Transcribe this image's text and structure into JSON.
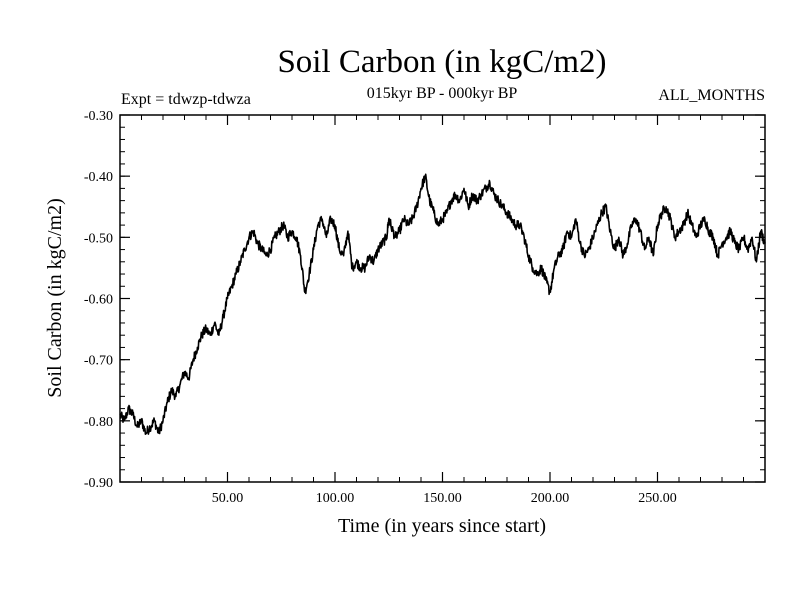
{
  "chart_data": {
    "type": "line",
    "title": "Soil Carbon (in kgC/m2)",
    "subtitle": "015kyr BP - 000kyr BP",
    "experiment_label": "Expt = tdwzp-tdwza",
    "months_label": "ALL_MONTHS",
    "xlabel": "Time (in years since start)",
    "ylabel": "Soil Carbon (in kgC/m2)",
    "xlim": [
      0,
      300
    ],
    "ylim": [
      -0.9,
      -0.3
    ],
    "x_ticks": [
      50,
      100,
      150,
      200,
      250
    ],
    "x_tick_labels": [
      "50.00",
      "100.00",
      "150.00",
      "200.00",
      "250.00"
    ],
    "y_ticks": [
      -0.9,
      -0.8,
      -0.7,
      -0.6,
      -0.5,
      -0.4,
      -0.3
    ],
    "y_tick_labels": [
      "-0.90",
      "-0.80",
      "-0.70",
      "-0.60",
      "-0.50",
      "-0.40",
      "-0.30"
    ],
    "series": [
      {
        "name": "Soil Carbon",
        "color": "#000000",
        "x": [
          0,
          2,
          4,
          6,
          8,
          10,
          12,
          14,
          16,
          18,
          20,
          22,
          24,
          26,
          28,
          30,
          32,
          34,
          36,
          38,
          40,
          42,
          44,
          46,
          48,
          50,
          52,
          54,
          56,
          58,
          60,
          62,
          64,
          66,
          68,
          70,
          72,
          74,
          76,
          78,
          80,
          82,
          84,
          86,
          88,
          90,
          92,
          94,
          96,
          98,
          100,
          102,
          104,
          106,
          108,
          110,
          112,
          114,
          116,
          118,
          120,
          122,
          124,
          125,
          126,
          128,
          130,
          132,
          134,
          136,
          138,
          140,
          142,
          144,
          146,
          148,
          150,
          152,
          154,
          156,
          158,
          160,
          162,
          164,
          166,
          168,
          170,
          172,
          174,
          176,
          178,
          180,
          182,
          184,
          186,
          188,
          190,
          192,
          194,
          196,
          198,
          200,
          202,
          204,
          206,
          208,
          210,
          212,
          214,
          216,
          218,
          220,
          222,
          224,
          226,
          228,
          230,
          232,
          234,
          236,
          238,
          240,
          242,
          244,
          246,
          248,
          250,
          252,
          254,
          256,
          258,
          260,
          262,
          264,
          266,
          268,
          270,
          272,
          274,
          276,
          278,
          280,
          282,
          284,
          286,
          288,
          290,
          292,
          294,
          296,
          298,
          300
        ],
        "y": [
          -0.79,
          -0.8,
          -0.78,
          -0.79,
          -0.81,
          -0.8,
          -0.82,
          -0.81,
          -0.8,
          -0.82,
          -0.8,
          -0.77,
          -0.75,
          -0.76,
          -0.74,
          -0.72,
          -0.73,
          -0.7,
          -0.68,
          -0.66,
          -0.65,
          -0.66,
          -0.64,
          -0.66,
          -0.63,
          -0.6,
          -0.58,
          -0.56,
          -0.54,
          -0.52,
          -0.5,
          -0.49,
          -0.51,
          -0.52,
          -0.53,
          -0.52,
          -0.5,
          -0.49,
          -0.48,
          -0.5,
          -0.49,
          -0.5,
          -0.53,
          -0.59,
          -0.56,
          -0.52,
          -0.48,
          -0.47,
          -0.5,
          -0.47,
          -0.48,
          -0.52,
          -0.53,
          -0.49,
          -0.55,
          -0.54,
          -0.55,
          -0.55,
          -0.53,
          -0.54,
          -0.52,
          -0.51,
          -0.5,
          -0.47,
          -0.48,
          -0.5,
          -0.49,
          -0.47,
          -0.48,
          -0.47,
          -0.45,
          -0.42,
          -0.4,
          -0.44,
          -0.46,
          -0.48,
          -0.47,
          -0.46,
          -0.44,
          -0.43,
          -0.44,
          -0.42,
          -0.45,
          -0.43,
          -0.44,
          -0.43,
          -0.42,
          -0.41,
          -0.43,
          -0.44,
          -0.45,
          -0.46,
          -0.47,
          -0.48,
          -0.48,
          -0.5,
          -0.53,
          -0.55,
          -0.56,
          -0.55,
          -0.57,
          -0.59,
          -0.55,
          -0.53,
          -0.52,
          -0.49,
          -0.5,
          -0.47,
          -0.51,
          -0.53,
          -0.52,
          -0.5,
          -0.48,
          -0.46,
          -0.45,
          -0.49,
          -0.52,
          -0.5,
          -0.53,
          -0.51,
          -0.48,
          -0.47,
          -0.49,
          -0.52,
          -0.5,
          -0.53,
          -0.48,
          -0.46,
          -0.45,
          -0.47,
          -0.5,
          -0.49,
          -0.48,
          -0.46,
          -0.48,
          -0.5,
          -0.48,
          -0.47,
          -0.49,
          -0.5,
          -0.53,
          -0.51,
          -0.5,
          -0.49,
          -0.51,
          -0.52,
          -0.5,
          -0.52,
          -0.5,
          -0.54,
          -0.49,
          -0.51
        ]
      }
    ]
  }
}
